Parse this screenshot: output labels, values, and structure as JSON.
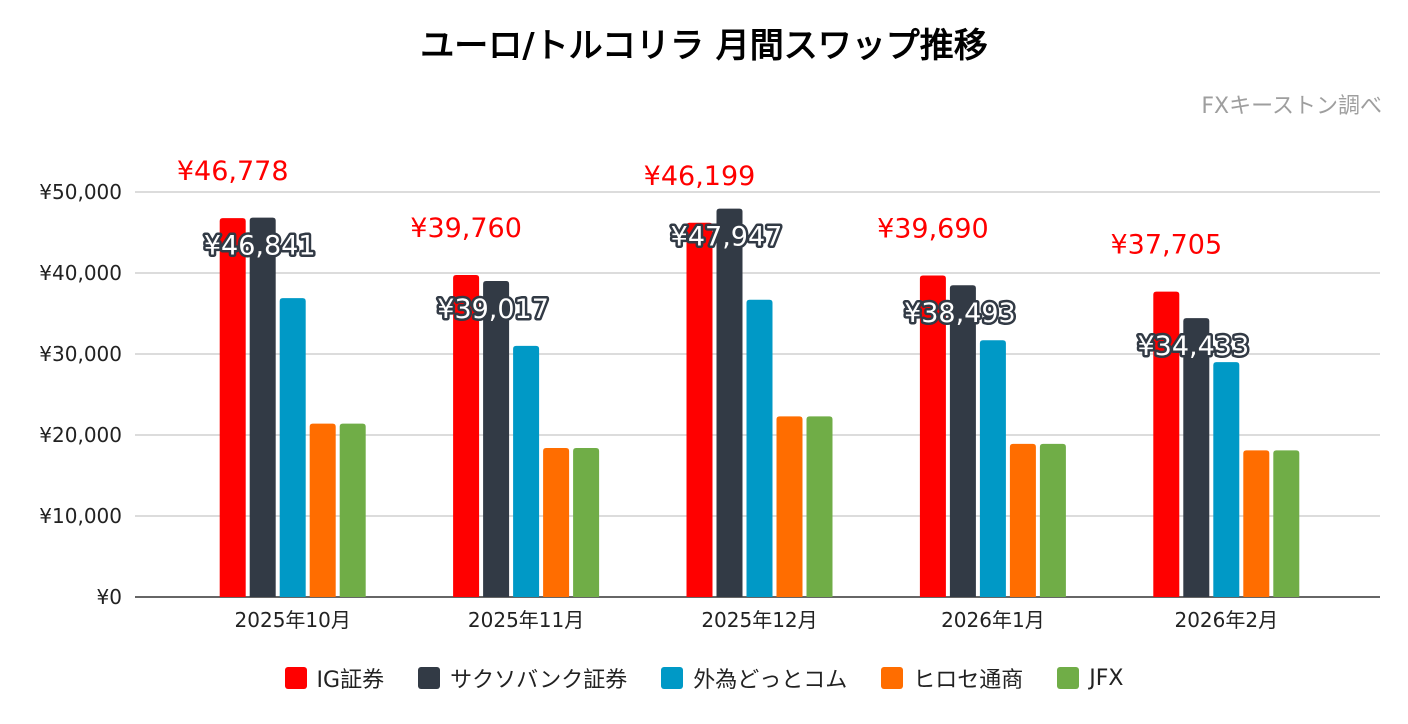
{
  "chart_data": {
    "type": "bar",
    "title": "ユーロ/トルコリラ 月間スワップ推移",
    "source_note": "FXキーストン調べ",
    "categories": [
      "2025年10月",
      "2025年11月",
      "2025年12月",
      "2026年1月",
      "2026年2月"
    ],
    "series": [
      {
        "name": "IG証券",
        "color": "#ff0000",
        "values": [
          46778,
          39760,
          46199,
          39690,
          37705
        ],
        "labels": [
          "¥46,778",
          "¥39,760",
          "¥46,199",
          "¥39,690",
          "¥37,705"
        ]
      },
      {
        "name": "サクソバンク証券",
        "color": "#323a45",
        "values": [
          46841,
          39017,
          47947,
          38493,
          34433
        ],
        "labels": [
          "¥46,841",
          "¥39,017",
          "¥47,947",
          "¥38,493",
          "¥34,433"
        ]
      },
      {
        "name": "外為どっとコム",
        "color": "#0099c6",
        "values": [
          36900,
          31000,
          36700,
          31700,
          29000
        ]
      },
      {
        "name": "ヒロセ通商",
        "color": "#ff6d00",
        "values": [
          21400,
          18400,
          22300,
          18900,
          18100
        ]
      },
      {
        "name": "JFX",
        "color": "#70ad47",
        "values": [
          21400,
          18400,
          22300,
          18900,
          18100
        ]
      }
    ],
    "y_ticks": [
      "¥0",
      "¥10,000",
      "¥20,000",
      "¥30,000",
      "¥40,000",
      "¥50,000"
    ],
    "ylim": [
      0,
      50000
    ],
    "grid": true,
    "legend_position": "bottom",
    "xlabel": "",
    "ylabel": ""
  }
}
